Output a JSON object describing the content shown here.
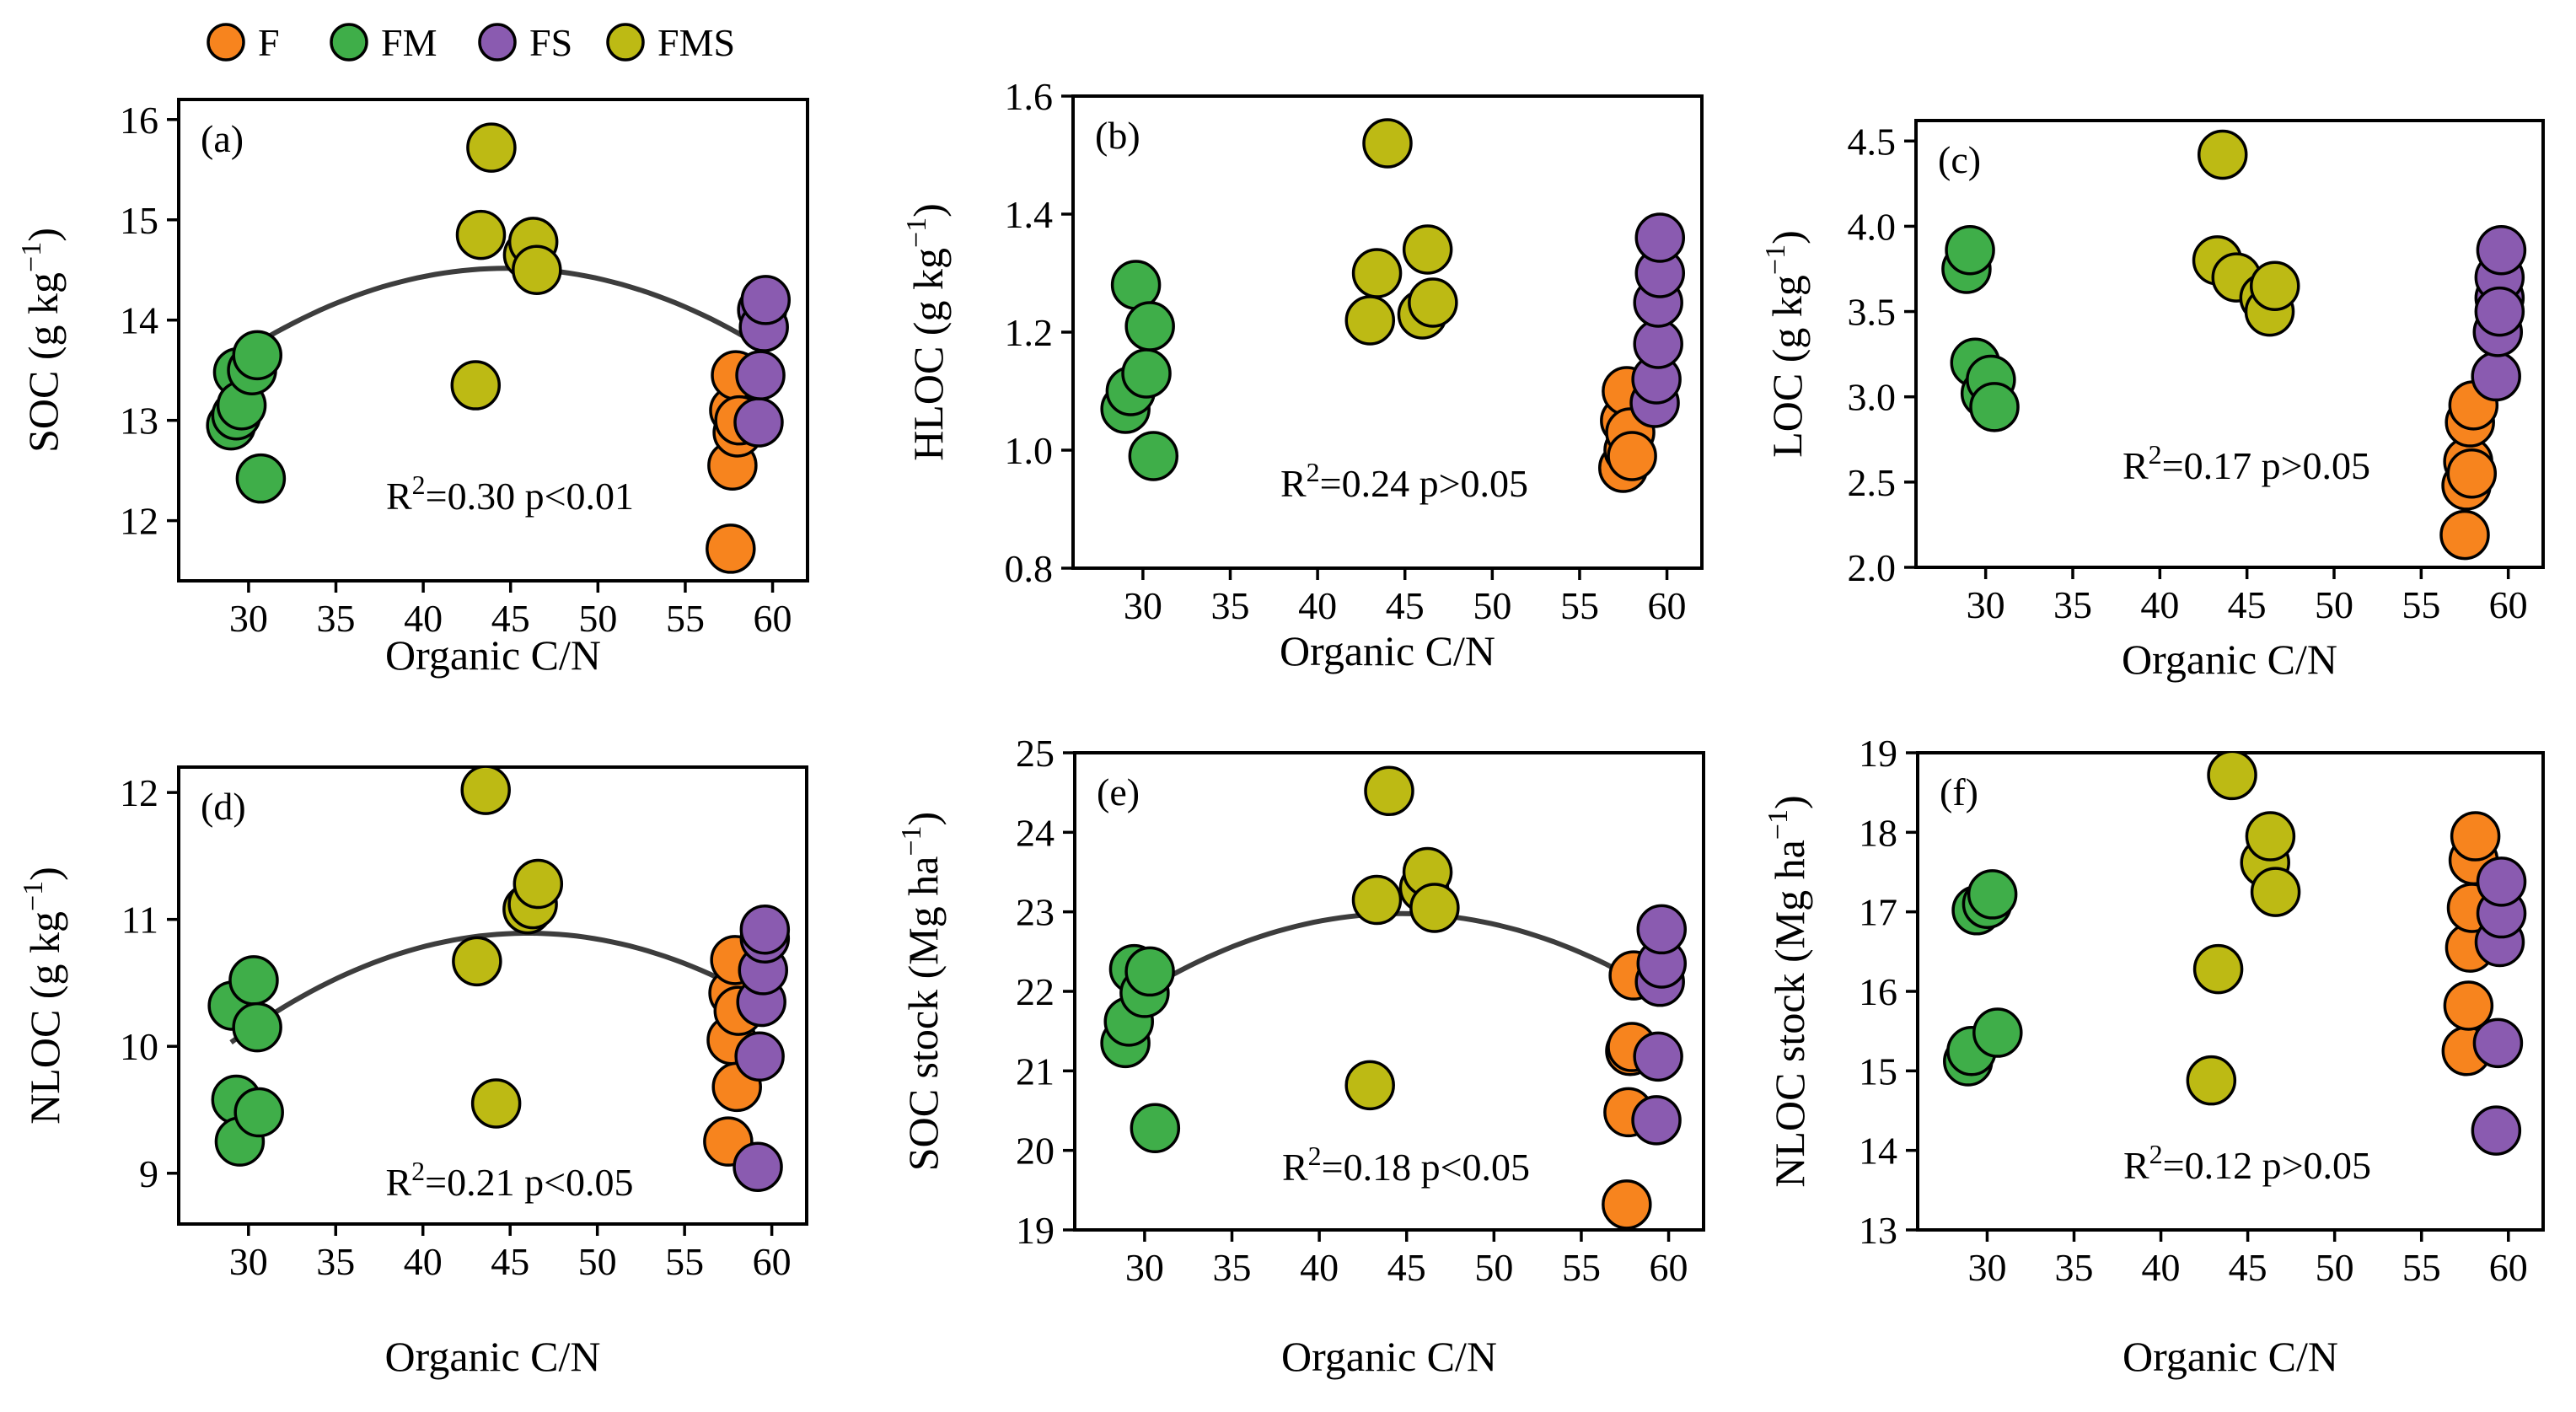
{
  "legend": {
    "items": [
      {
        "label": "F",
        "color": "#F7841E"
      },
      {
        "label": "FM",
        "color": "#3FAE49"
      },
      {
        "label": "FS",
        "color": "#8A5BB0"
      },
      {
        "label": "FMS",
        "color": "#BDBA14"
      }
    ]
  },
  "chart_data": [
    {
      "type": "scatter",
      "panel_label": "(a)",
      "xlabel": "Organic C/N",
      "ylabel_main": "SOC (g kg",
      "ylabel_sup": "−1",
      "ylabel_tail": ")",
      "xlim": [
        26,
        62
      ],
      "ylim": [
        11.4,
        16.2
      ],
      "xticks": [
        30,
        35,
        40,
        45,
        50,
        55,
        60
      ],
      "yticks": [
        12,
        13,
        14,
        15,
        16
      ],
      "stat_main": "R",
      "stat_sup": "2",
      "stat_tail": "=0.30 p<0.01",
      "fit": {
        "coef": [
          -0.00367,
          0.3285,
          7.165
        ],
        "x_range": [
          29,
          59.5
        ]
      },
      "series": [
        {
          "name": "FM",
          "points": [
            [
              29.0,
              12.95
            ],
            [
              29.3,
              13.05
            ],
            [
              29.4,
              13.48
            ],
            [
              29.6,
              13.15
            ],
            [
              30.2,
              13.5
            ],
            [
              30.5,
              13.65
            ],
            [
              30.7,
              12.42
            ]
          ]
        },
        {
          "name": "FMS",
          "points": [
            [
              43.0,
              13.35
            ],
            [
              43.3,
              14.85
            ],
            [
              43.9,
              15.72
            ],
            [
              46.0,
              14.65
            ],
            [
              46.3,
              14.78
            ],
            [
              46.5,
              14.5
            ]
          ]
        },
        {
          "name": "F",
          "points": [
            [
              57.6,
              11.72
            ],
            [
              57.7,
              12.55
            ],
            [
              57.8,
              13.1
            ],
            [
              57.9,
              13.45
            ],
            [
              58.0,
              12.88
            ],
            [
              58.1,
              13.0
            ]
          ]
        },
        {
          "name": "FS",
          "points": [
            [
              59.2,
              12.98
            ],
            [
              59.3,
              13.45
            ],
            [
              59.4,
              14.1
            ],
            [
              59.5,
              13.93
            ],
            [
              59.6,
              14.2
            ]
          ]
        }
      ]
    },
    {
      "type": "scatter",
      "panel_label": "(b)",
      "xlabel": "Organic C/N",
      "ylabel_main": "HLOC (g kg",
      "ylabel_sup": "−1",
      "ylabel_tail": ")",
      "xlim": [
        26,
        62
      ],
      "ylim": [
        0.8,
        1.6
      ],
      "xticks": [
        30,
        35,
        40,
        45,
        50,
        55,
        60
      ],
      "yticks": [
        0.8,
        1.0,
        1.2,
        1.4,
        1.6
      ],
      "ytick_decimals": 1,
      "stat_main": "R",
      "stat_sup": "2",
      "stat_tail": "=0.24 p>0.05",
      "series": [
        {
          "name": "FM",
          "points": [
            [
              29.0,
              1.07
            ],
            [
              29.3,
              1.1
            ],
            [
              29.6,
              1.28
            ],
            [
              30.2,
              1.13
            ],
            [
              30.4,
              1.21
            ],
            [
              30.6,
              0.99
            ]
          ]
        },
        {
          "name": "FMS",
          "points": [
            [
              43.0,
              1.22
            ],
            [
              43.4,
              1.3
            ],
            [
              44.0,
              1.52
            ],
            [
              46.0,
              1.23
            ],
            [
              46.3,
              1.34
            ],
            [
              46.6,
              1.25
            ]
          ]
        },
        {
          "name": "F",
          "points": [
            [
              57.5,
              0.97
            ],
            [
              57.6,
              1.05
            ],
            [
              57.7,
              1.1
            ],
            [
              57.8,
              1.0
            ],
            [
              57.9,
              1.03
            ],
            [
              58.0,
              0.99
            ]
          ]
        },
        {
          "name": "FS",
          "points": [
            [
              59.3,
              1.08
            ],
            [
              59.4,
              1.12
            ],
            [
              59.5,
              1.18
            ],
            [
              59.5,
              1.25
            ],
            [
              59.6,
              1.3
            ],
            [
              59.6,
              1.36
            ]
          ]
        }
      ]
    },
    {
      "type": "scatter",
      "panel_label": "(c)",
      "xlabel": "Organic C/N",
      "ylabel_main": "LOC (g kg",
      "ylabel_sup": "−1",
      "ylabel_tail": ")",
      "xlim": [
        26,
        62
      ],
      "ylim": [
        2.0,
        4.62
      ],
      "xticks": [
        30,
        35,
        40,
        45,
        50,
        55,
        60
      ],
      "yticks": [
        2.0,
        2.5,
        3.0,
        3.5,
        4.0,
        4.5
      ],
      "ytick_decimals": 1,
      "stat_main": "R",
      "stat_sup": "2",
      "stat_tail": "=0.17 p>0.05",
      "series": [
        {
          "name": "FM",
          "points": [
            [
              28.9,
              3.75
            ],
            [
              29.1,
              3.86
            ],
            [
              29.4,
              3.2
            ],
            [
              30.0,
              3.02
            ],
            [
              30.3,
              3.1
            ],
            [
              30.5,
              2.94
            ]
          ]
        },
        {
          "name": "FMS",
          "points": [
            [
              43.3,
              3.8
            ],
            [
              43.6,
              4.42
            ],
            [
              44.4,
              3.7
            ],
            [
              46.0,
              3.58
            ],
            [
              46.3,
              3.5
            ],
            [
              46.6,
              3.65
            ]
          ]
        },
        {
          "name": "F",
          "points": [
            [
              57.5,
              2.19
            ],
            [
              57.6,
              2.48
            ],
            [
              57.7,
              2.62
            ],
            [
              57.8,
              2.85
            ],
            [
              57.9,
              2.55
            ],
            [
              58.0,
              2.95
            ]
          ]
        },
        {
          "name": "FS",
          "points": [
            [
              59.3,
              3.12
            ],
            [
              59.4,
              3.38
            ],
            [
              59.5,
              3.58
            ],
            [
              59.5,
              3.7
            ],
            [
              59.6,
              3.86
            ],
            [
              59.5,
              3.5
            ]
          ]
        }
      ]
    },
    {
      "type": "scatter",
      "panel_label": "(d)",
      "xlabel": "Organic C/N",
      "ylabel_main": "NLOC (g kg",
      "ylabel_sup": "−1",
      "ylabel_tail": ")",
      "xlim": [
        26,
        62
      ],
      "ylim": [
        8.6,
        12.2
      ],
      "xticks": [
        30,
        35,
        40,
        45,
        50,
        55,
        60
      ],
      "yticks": [
        9,
        10,
        11,
        12
      ],
      "stat_main": "R",
      "stat_sup": "2",
      "stat_tail": "=0.21 p<0.05",
      "fit": {
        "coef": [
          -0.00297,
          0.2734,
          4.6
        ],
        "x_range": [
          29,
          59.5
        ]
      },
      "series": [
        {
          "name": "FM",
          "points": [
            [
              29.1,
              10.32
            ],
            [
              29.3,
              9.58
            ],
            [
              29.5,
              9.25
            ],
            [
              30.3,
              10.52
            ],
            [
              30.5,
              10.15
            ],
            [
              30.6,
              9.48
            ]
          ]
        },
        {
          "name": "FMS",
          "points": [
            [
              43.1,
              10.67
            ],
            [
              43.6,
              12.02
            ],
            [
              44.2,
              9.55
            ],
            [
              46.0,
              11.08
            ],
            [
              46.3,
              11.12
            ],
            [
              46.6,
              11.28
            ]
          ]
        },
        {
          "name": "F",
          "points": [
            [
              57.5,
              9.25
            ],
            [
              57.7,
              10.05
            ],
            [
              57.8,
              10.42
            ],
            [
              57.9,
              10.68
            ],
            [
              58.0,
              9.68
            ],
            [
              58.1,
              10.28
            ]
          ]
        },
        {
          "name": "FS",
          "points": [
            [
              59.2,
              9.05
            ],
            [
              59.3,
              9.92
            ],
            [
              59.4,
              10.35
            ],
            [
              59.5,
              10.6
            ],
            [
              59.6,
              10.85
            ],
            [
              59.6,
              10.92
            ]
          ]
        }
      ]
    },
    {
      "type": "scatter",
      "panel_label": "(e)",
      "xlabel": "Organic C/N",
      "ylabel_main": "SOC stock (Mg ha",
      "ylabel_sup": "−1",
      "ylabel_tail": ")",
      "xlim": [
        26,
        62
      ],
      "ylim": [
        19,
        25
      ],
      "xticks": [
        30,
        35,
        40,
        45,
        50,
        55,
        60
      ],
      "yticks": [
        19,
        20,
        21,
        22,
        23,
        24,
        25
      ],
      "stat_main": "R",
      "stat_sup": "2",
      "stat_tail": "=0.18  p<0.05",
      "fit": {
        "coef": [
          -0.00455,
          0.4058,
          13.93
        ],
        "x_range": [
          29,
          59.5
        ]
      },
      "series": [
        {
          "name": "FM",
          "points": [
            [
              28.9,
              21.35
            ],
            [
              29.1,
              21.62
            ],
            [
              29.4,
              22.28
            ],
            [
              30.0,
              21.98
            ],
            [
              30.3,
              22.25
            ],
            [
              30.6,
              20.28
            ]
          ]
        },
        {
          "name": "FMS",
          "points": [
            [
              42.9,
              20.82
            ],
            [
              43.3,
              23.15
            ],
            [
              44.0,
              24.52
            ],
            [
              46.0,
              23.3
            ],
            [
              46.2,
              23.5
            ],
            [
              46.6,
              23.05
            ]
          ]
        },
        {
          "name": "F",
          "points": [
            [
              57.6,
              19.32
            ],
            [
              57.7,
              20.48
            ],
            [
              57.8,
              21.25
            ],
            [
              57.9,
              21.3
            ],
            [
              58.0,
              22.2
            ]
          ]
        },
        {
          "name": "FS",
          "points": [
            [
              59.3,
              20.38
            ],
            [
              59.4,
              21.18
            ],
            [
              59.5,
              22.12
            ],
            [
              59.6,
              22.35
            ],
            [
              59.6,
              22.78
            ]
          ]
        }
      ]
    },
    {
      "type": "scatter",
      "panel_label": "(f)",
      "xlabel": "Organic C/N",
      "ylabel_main": "NLOC stock (Mg ha",
      "ylabel_sup": "−1",
      "ylabel_tail": ")",
      "xlim": [
        26,
        62
      ],
      "ylim": [
        13,
        19
      ],
      "xticks": [
        30,
        35,
        40,
        45,
        50,
        55,
        60
      ],
      "yticks": [
        13,
        14,
        15,
        16,
        17,
        18,
        19
      ],
      "stat_main": "R",
      "stat_sup": "2",
      "stat_tail": "=0.12 p>0.05",
      "series": [
        {
          "name": "FM",
          "points": [
            [
              28.9,
              15.12
            ],
            [
              29.1,
              15.25
            ],
            [
              29.4,
              17.02
            ],
            [
              30.0,
              17.1
            ],
            [
              30.3,
              17.22
            ],
            [
              30.6,
              15.48
            ]
          ]
        },
        {
          "name": "FMS",
          "points": [
            [
              42.9,
              14.88
            ],
            [
              43.3,
              16.28
            ],
            [
              44.1,
              18.72
            ],
            [
              46.0,
              17.62
            ],
            [
              46.3,
              17.95
            ],
            [
              46.6,
              17.25
            ]
          ]
        },
        {
          "name": "F",
          "points": [
            [
              57.6,
              15.25
            ],
            [
              57.7,
              15.82
            ],
            [
              57.8,
              16.55
            ],
            [
              57.9,
              17.05
            ],
            [
              58.0,
              17.65
            ],
            [
              58.1,
              17.95
            ]
          ]
        },
        {
          "name": "FS",
          "points": [
            [
              59.3,
              14.25
            ],
            [
              59.4,
              15.35
            ],
            [
              59.5,
              16.62
            ],
            [
              59.6,
              16.98
            ],
            [
              59.6,
              17.38
            ]
          ]
        }
      ]
    }
  ]
}
